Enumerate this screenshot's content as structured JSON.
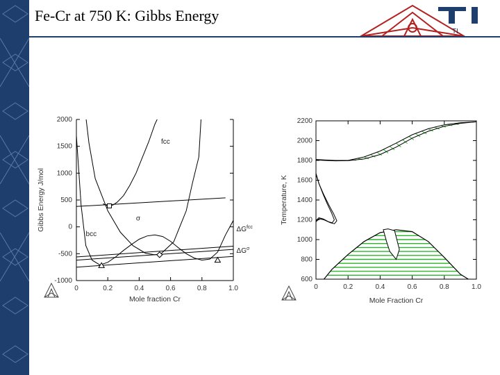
{
  "slide": {
    "title": "Fe-Cr at 750 K: Gibbs Energy"
  },
  "logo": {
    "text": "TI",
    "color": "#1e3f6e",
    "triangle_color": "#b32020"
  },
  "colors": {
    "sidebar": "#1e3f6e",
    "tie_line": "#2cb52c",
    "curve": "#000000"
  },
  "chart_data": [
    {
      "type": "line",
      "xlabel": "Mole fraction Cr",
      "ylabel": "Gibbs Energy J/mol",
      "xlim": [
        0,
        1.0
      ],
      "ylim": [
        -1000,
        2000
      ],
      "x_ticks": [
        "0",
        "0.2",
        "0.4",
        "0.6",
        "0.8",
        "1.0"
      ],
      "y_ticks": [
        "2000",
        "1500",
        "1000",
        "500",
        "0",
        "-500",
        "-1000"
      ],
      "series": [
        {
          "name": "fcc",
          "x": [
            0.17,
            0.2,
            0.23,
            0.26,
            0.3,
            0.34,
            0.38,
            0.42,
            0.46,
            0.5,
            0.53,
            0.56
          ],
          "y": [
            430,
            390,
            400,
            460,
            580,
            770,
            1000,
            1290,
            1580,
            1910,
            2100,
            2300
          ]
        },
        {
          "name": "bcc",
          "x": [
            0.0,
            0.03,
            0.06,
            0.1,
            0.15,
            0.2,
            0.25,
            0.3,
            0.35,
            0.4,
            0.45,
            0.5,
            0.55,
            0.6,
            0.65,
            0.7,
            0.75,
            0.8,
            0.85,
            0.9,
            0.95,
            1.0
          ],
          "y": [
            1700,
            400,
            -350,
            -620,
            -710,
            -660,
            -560,
            -440,
            -330,
            -230,
            -170,
            -150,
            -180,
            -270,
            -390,
            -500,
            -580,
            -620,
            -600,
            -470,
            -150,
            120
          ]
        },
        {
          "name": "σ",
          "x": [
            0.05,
            0.08,
            0.12,
            0.2,
            0.28,
            0.36,
            0.44,
            0.5,
            0.54,
            0.62,
            0.7,
            0.74,
            0.78,
            0.8
          ],
          "y": [
            2300,
            1560,
            900,
            300,
            -100,
            -350,
            -490,
            -520,
            -500,
            -280,
            300,
            820,
            1300,
            2300
          ]
        }
      ],
      "tie_lines": [
        {
          "x": [
            0.0,
            1.0
          ],
          "y": [
            -560,
            -360
          ]
        },
        {
          "x": [
            0.0,
            1.0
          ],
          "y": [
            -620,
            -420
          ]
        },
        {
          "x": [
            0.0,
            1.0
          ],
          "y": [
            -750,
            -550
          ]
        },
        {
          "x": [
            0.0,
            0.95
          ],
          "y": [
            380,
            540
          ]
        }
      ],
      "markers": [
        {
          "shape": "square",
          "x": 0.21,
          "y": 390
        },
        {
          "shape": "triangle",
          "x": 0.16,
          "y": -720
        },
        {
          "shape": "diamond",
          "x": 0.53,
          "y": -520
        },
        {
          "shape": "triangle",
          "x": 0.9,
          "y": -620
        }
      ],
      "annotations": [
        {
          "text": "fcc",
          "x": 0.54,
          "y": 1550
        },
        {
          "text": "σ",
          "x": 0.38,
          "y": 120
        },
        {
          "text": "bcc",
          "x": 0.06,
          "y": -170
        },
        {
          "text": "ΔG",
          "sup": "fcc",
          "x": 1.02,
          "y": -80
        },
        {
          "text": "ΔG",
          "sup": "σ",
          "x": 1.02,
          "y": -480
        }
      ]
    },
    {
      "type": "line",
      "xlabel": "Mole Fraction Cr",
      "ylabel": "Temperature, K",
      "xlim": [
        0,
        1.0
      ],
      "ylim": [
        600,
        2200
      ],
      "x_ticks": [
        "0",
        "0.2",
        "0.4",
        "0.6",
        "0.8",
        "1.0"
      ],
      "y_ticks": [
        "2200",
        "2000",
        "1800",
        "1600",
        "1400",
        "1200",
        "1000",
        "800",
        "600"
      ],
      "liquidus": {
        "x": [
          0.0,
          0.05,
          0.12,
          0.2,
          0.3,
          0.4,
          0.5,
          0.6,
          0.7,
          0.8,
          0.9,
          1.0
        ],
        "y": [
          1810,
          1805,
          1800,
          1800,
          1835,
          1895,
          1975,
          2060,
          2120,
          2160,
          2180,
          2190
        ]
      },
      "solidus": {
        "x": [
          0.0,
          0.05,
          0.12,
          0.2,
          0.3,
          0.4,
          0.5,
          0.6,
          0.7,
          0.8,
          0.9,
          1.0
        ],
        "y": [
          1805,
          1800,
          1796,
          1797,
          1815,
          1860,
          1935,
          2025,
          2095,
          2145,
          2175,
          2190
        ]
      },
      "gamma_loop": {
        "x": [
          0.0,
          0.02,
          0.05,
          0.08,
          0.11,
          0.13,
          0.115,
          0.09,
          0.05,
          0.02,
          0.0
        ],
        "y": [
          1660,
          1560,
          1450,
          1350,
          1260,
          1190,
          1160,
          1170,
          1200,
          1210,
          1180
        ]
      },
      "miscibility_dome": {
        "x": [
          0.05,
          0.1,
          0.2,
          0.3,
          0.4,
          0.5,
          0.6,
          0.7,
          0.8,
          0.9,
          0.95
        ],
        "y": [
          600,
          700,
          850,
          980,
          1070,
          1100,
          1080,
          980,
          820,
          650,
          600
        ]
      },
      "sigma_region": {
        "x": [
          0.42,
          0.45,
          0.49,
          0.52,
          0.5,
          0.46,
          0.44,
          0.42
        ],
        "y": [
          1100,
          1108,
          1090,
          900,
          800,
          880,
          980,
          1100
        ]
      },
      "tie_line_temps": [
        640,
        680,
        720,
        760,
        800,
        840,
        880,
        920,
        960,
        1000,
        1040,
        1080
      ]
    }
  ]
}
